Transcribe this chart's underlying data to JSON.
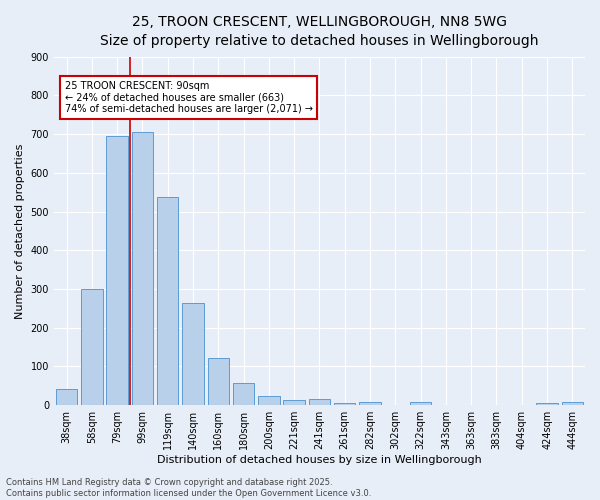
{
  "title_line1": "25, TROON CRESCENT, WELLINGBOROUGH, NN8 5WG",
  "title_line2": "Size of property relative to detached houses in Wellingborough",
  "xlabel": "Distribution of detached houses by size in Wellingborough",
  "ylabel": "Number of detached properties",
  "categories": [
    "38sqm",
    "58sqm",
    "79sqm",
    "99sqm",
    "119sqm",
    "140sqm",
    "160sqm",
    "180sqm",
    "200sqm",
    "221sqm",
    "241sqm",
    "261sqm",
    "282sqm",
    "302sqm",
    "322sqm",
    "343sqm",
    "363sqm",
    "383sqm",
    "404sqm",
    "424sqm",
    "444sqm"
  ],
  "values": [
    42,
    300,
    695,
    705,
    538,
    265,
    122,
    57,
    25,
    14,
    17,
    5,
    9,
    0,
    9,
    0,
    0,
    0,
    0,
    5,
    7
  ],
  "bar_color": "#b8d0ea",
  "bar_edge_color": "#5b9bd5",
  "annotation_text": "25 TROON CRESCENT: 90sqm\n← 24% of detached houses are smaller (663)\n74% of semi-detached houses are larger (2,071) →",
  "annotation_box_color": "#ffffff",
  "annotation_box_edge": "#cc0000",
  "vline_color": "#cc0000",
  "vline_x_index": 2,
  "ylim": [
    0,
    900
  ],
  "yticks": [
    0,
    100,
    200,
    300,
    400,
    500,
    600,
    700,
    800,
    900
  ],
  "background_color": "#e8eef8",
  "grid_color": "#ffffff",
  "footer_line1": "Contains HM Land Registry data © Crown copyright and database right 2025.",
  "footer_line2": "Contains public sector information licensed under the Open Government Licence v3.0.",
  "title_fontsize": 10,
  "subtitle_fontsize": 9,
  "xlabel_fontsize": 8,
  "ylabel_fontsize": 8,
  "tick_fontsize": 7,
  "footer_fontsize": 6,
  "annotation_fontsize": 7
}
